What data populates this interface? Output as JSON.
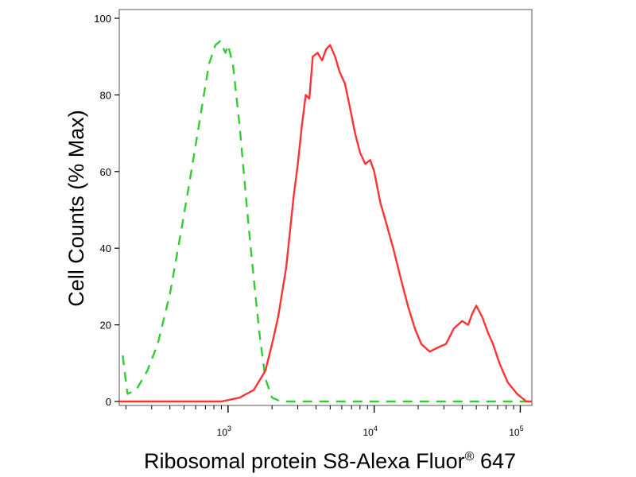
{
  "chart_data": {
    "type": "line",
    "title": "",
    "xlabel": "Ribosomal protein S8-Alexa Fluor",
    "xlabel_superscript": "®",
    "xlabel_suffix": " 647",
    "ylabel": "Cell Counts (% Max)",
    "x_scale": "log",
    "xlim": [
      180,
      120000
    ],
    "ylim": [
      0,
      104
    ],
    "yticks": [
      {
        "value": 0,
        "label": "0"
      },
      {
        "value": 20,
        "label": "20"
      },
      {
        "value": 40,
        "label": "40"
      },
      {
        "value": 60,
        "label": "60"
      },
      {
        "value": 80,
        "label": "80"
      },
      {
        "value": 100,
        "label": "100"
      }
    ],
    "xticks": [
      {
        "value": 1000,
        "base": "10",
        "exp": "3"
      },
      {
        "value": 10000,
        "base": "10",
        "exp": "4"
      },
      {
        "value": 100000,
        "base": "10",
        "exp": "5"
      }
    ],
    "grid": false,
    "legend": "none",
    "series": [
      {
        "color": "#33cc33",
        "dash": "dashed",
        "points": [
          [
            190,
            12
          ],
          [
            205,
            2
          ],
          [
            235,
            3
          ],
          [
            280,
            8
          ],
          [
            330,
            15
          ],
          [
            400,
            28
          ],
          [
            480,
            45
          ],
          [
            560,
            60
          ],
          [
            650,
            75
          ],
          [
            740,
            88
          ],
          [
            820,
            93
          ],
          [
            880,
            94
          ],
          [
            960,
            91
          ],
          [
            1000,
            93
          ],
          [
            1080,
            88
          ],
          [
            1200,
            72
          ],
          [
            1350,
            50
          ],
          [
            1500,
            32
          ],
          [
            1650,
            17
          ],
          [
            1800,
            6
          ],
          [
            2000,
            1
          ],
          [
            2300,
            0
          ],
          [
            3000,
            0
          ],
          [
            10000,
            0
          ],
          [
            100000,
            0
          ],
          [
            120000,
            0
          ]
        ]
      },
      {
        "color": "#ff3333",
        "dash": "solid",
        "points": [
          [
            180,
            0
          ],
          [
            900,
            0
          ],
          [
            1200,
            1
          ],
          [
            1500,
            3
          ],
          [
            1800,
            8
          ],
          [
            2000,
            15
          ],
          [
            2200,
            22
          ],
          [
            2500,
            35
          ],
          [
            2800,
            53
          ],
          [
            3000,
            62
          ],
          [
            3200,
            72
          ],
          [
            3400,
            80
          ],
          [
            3600,
            79
          ],
          [
            3800,
            90
          ],
          [
            4100,
            91
          ],
          [
            4400,
            89
          ],
          [
            4700,
            92
          ],
          [
            5000,
            93
          ],
          [
            5400,
            90
          ],
          [
            5800,
            86
          ],
          [
            6300,
            83
          ],
          [
            6800,
            77
          ],
          [
            7400,
            70
          ],
          [
            8000,
            65
          ],
          [
            8700,
            62
          ],
          [
            9400,
            63
          ],
          [
            10000,
            60
          ],
          [
            11000,
            52
          ],
          [
            12000,
            47
          ],
          [
            13500,
            40
          ],
          [
            15000,
            33
          ],
          [
            17000,
            25
          ],
          [
            19000,
            19
          ],
          [
            21000,
            15
          ],
          [
            24000,
            13
          ],
          [
            27000,
            14
          ],
          [
            31000,
            15
          ],
          [
            35000,
            19
          ],
          [
            40000,
            21
          ],
          [
            44000,
            20
          ],
          [
            47000,
            23
          ],
          [
            50000,
            25
          ],
          [
            55000,
            22
          ],
          [
            60000,
            18
          ],
          [
            65000,
            15
          ],
          [
            72000,
            10
          ],
          [
            82000,
            5
          ],
          [
            95000,
            2
          ],
          [
            110000,
            0
          ],
          [
            120000,
            0
          ]
        ]
      }
    ]
  }
}
